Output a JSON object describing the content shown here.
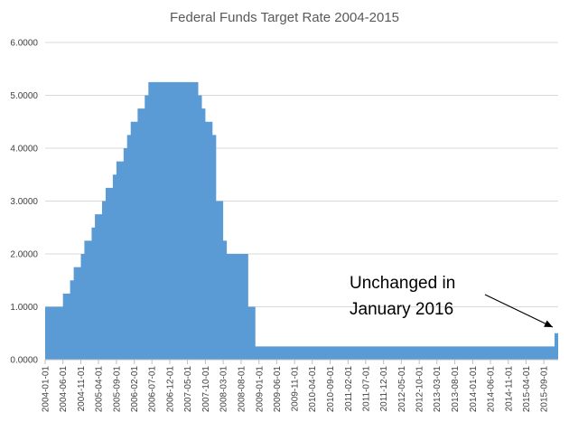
{
  "chart_data": {
    "type": "area",
    "title": "Federal Funds Target Rate 2004-2015",
    "xlabel": "",
    "ylabel": "",
    "ylim": [
      0,
      6
    ],
    "y_ticks": [
      "0.0000",
      "1.0000",
      "2.0000",
      "3.0000",
      "4.0000",
      "5.0000",
      "6.0000"
    ],
    "x_tick_labels": [
      "2004-01-01",
      "2004-06-01",
      "2004-11-01",
      "2005-04-01",
      "2005-09-01",
      "2006-02-01",
      "2006-07-01",
      "2006-12-01",
      "2007-05-01",
      "2007-10-01",
      "2008-03-01",
      "2008-08-01",
      "2009-01-01",
      "2009-06-01",
      "2009-11-01",
      "2010-04-01",
      "2010-09-01",
      "2011-02-01",
      "2011-07-01",
      "2011-12-01",
      "2012-05-01",
      "2012-10-01",
      "2013-03-01",
      "2013-08-01",
      "2014-01-01",
      "2014-06-01",
      "2014-11-01",
      "2015-04-01",
      "2015-09-01"
    ],
    "grid": "horizontal",
    "legend": "none",
    "color": "#5b9bd5",
    "series": [
      {
        "x": [
          "2004-01-01",
          "2004-05-01",
          "2004-06-01",
          "2004-07-01",
          "2004-08-01",
          "2004-09-01",
          "2004-10-01",
          "2004-11-01",
          "2004-12-01",
          "2005-01-01",
          "2005-02-01",
          "2005-03-01",
          "2005-04-01",
          "2005-05-01",
          "2005-06-01",
          "2005-07-01",
          "2005-08-01",
          "2005-09-01",
          "2005-10-01",
          "2005-11-01",
          "2005-12-01",
          "2006-01-01",
          "2006-02-01",
          "2006-03-01",
          "2006-04-01",
          "2006-05-01",
          "2006-06-01",
          "2006-07-01",
          "2007-07-01",
          "2007-08-01",
          "2007-09-01",
          "2007-10-01",
          "2007-11-01",
          "2007-12-01",
          "2008-01-01",
          "2008-02-01",
          "2008-03-01",
          "2008-04-01",
          "2008-05-01",
          "2008-09-01",
          "2008-10-01",
          "2008-11-01",
          "2008-12-01",
          "2015-11-01",
          "2015-12-01",
          "2016-01-01"
        ],
        "values": [
          1.0,
          1.0,
          1.25,
          1.25,
          1.5,
          1.75,
          1.75,
          2.0,
          2.25,
          2.25,
          2.5,
          2.75,
          2.75,
          3.0,
          3.25,
          3.25,
          3.5,
          3.75,
          3.75,
          4.0,
          4.25,
          4.5,
          4.5,
          4.75,
          4.75,
          5.0,
          5.25,
          5.25,
          5.25,
          5.0,
          4.75,
          4.5,
          4.5,
          4.25,
          3.0,
          3.0,
          2.25,
          2.0,
          2.0,
          2.0,
          1.0,
          1.0,
          0.25,
          0.25,
          0.5,
          0.5
        ]
      }
    ],
    "annotation": {
      "line1": "Unchanged in",
      "line2": "January 2016"
    }
  }
}
